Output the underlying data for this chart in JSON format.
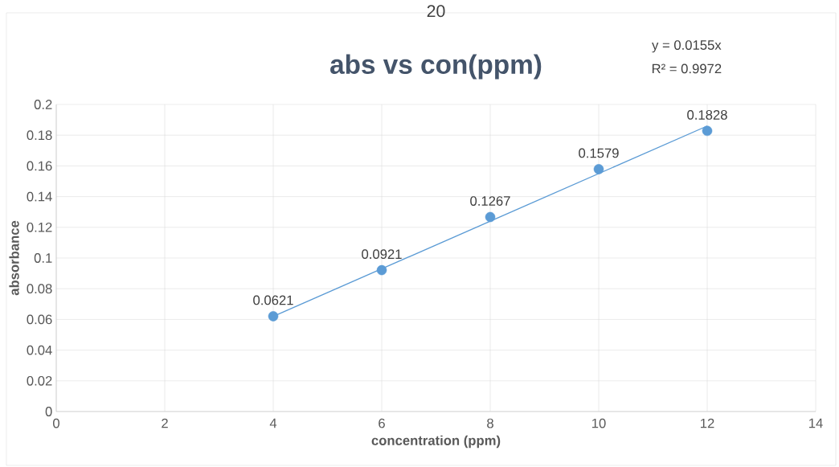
{
  "chart_data": {
    "type": "scatter",
    "title": "abs vs con(ppm)",
    "xlabel": "concentration (ppm)",
    "ylabel": "absorbance",
    "annotations": [
      "20",
      "y = 0.0155x",
      "R² = 0.9972"
    ],
    "x": [
      4,
      6,
      8,
      10,
      12
    ],
    "series": [
      {
        "color": "#5b9bd5",
        "marker": "circle",
        "values": [
          0.0621,
          0.0921,
          0.1267,
          0.1579,
          0.1828
        ],
        "value_labels": [
          "0.0621",
          "0.0921",
          "0.1267",
          "0.1579",
          "0.1828"
        ]
      },
      {
        "type": "line",
        "color": "#5b9bd5",
        "x": [
          4,
          12
        ],
        "values": [
          0.062,
          0.186
        ]
      }
    ],
    "xlim": [
      0,
      14
    ],
    "xticks": [
      0,
      2,
      4,
      6,
      8,
      10,
      12,
      14
    ],
    "ylim": [
      0,
      0.2
    ],
    "yticks": [
      0,
      0.02,
      0.04,
      0.06,
      0.08,
      0.1,
      0.12,
      0.14,
      0.16,
      0.18,
      0.2
    ],
    "grid": true
  }
}
